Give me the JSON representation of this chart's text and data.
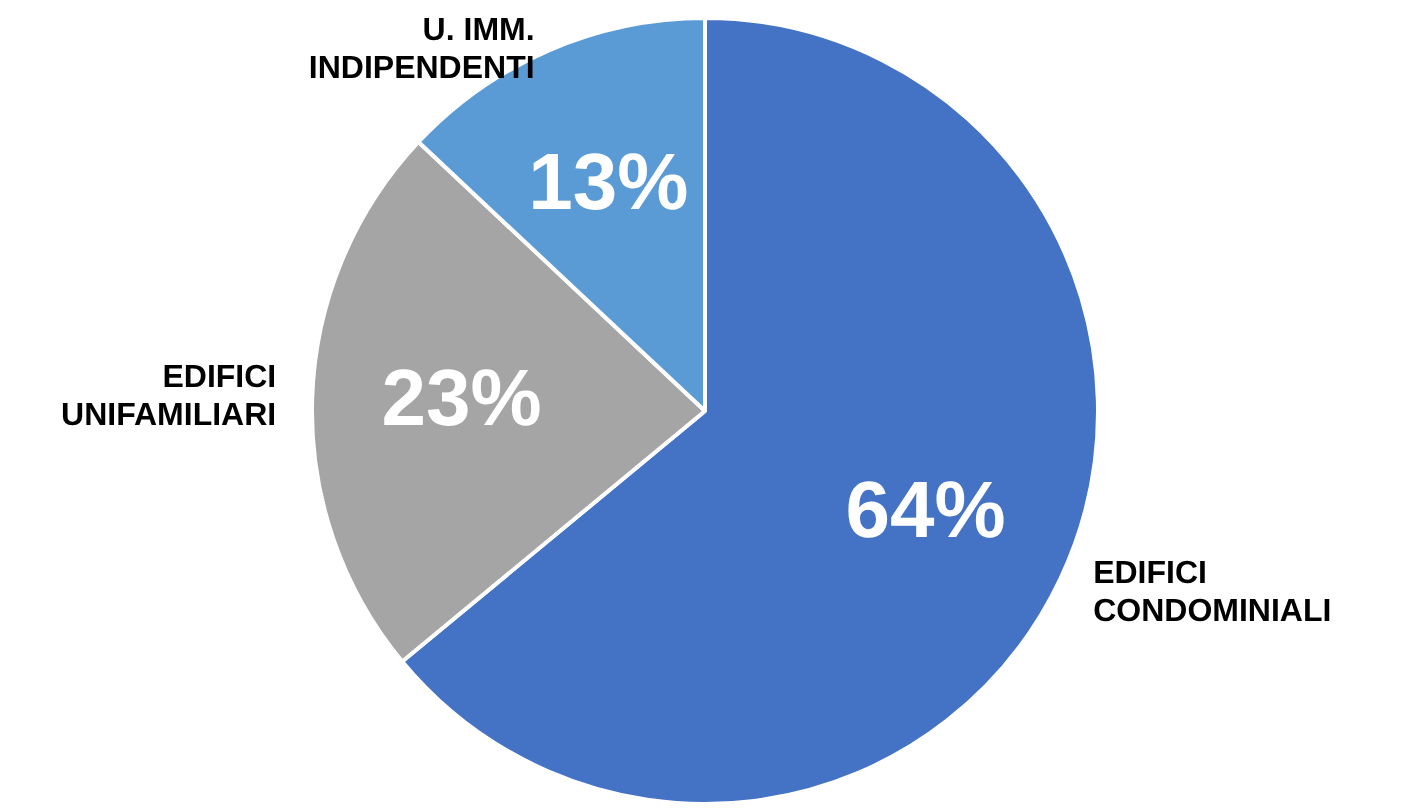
{
  "chart_data": {
    "type": "pie",
    "categories": [
      "EDIFICI CONDOMINIALI",
      "EDIFICI UNIFAMILIARI",
      "U. IMM. INDIPENDENTI"
    ],
    "values": [
      64,
      23,
      13
    ],
    "colors": [
      "#4472c4",
      "#a5a5a5",
      "#5b9bd5"
    ],
    "value_labels": [
      "64%",
      "23%",
      "13%"
    ],
    "legend": false
  }
}
